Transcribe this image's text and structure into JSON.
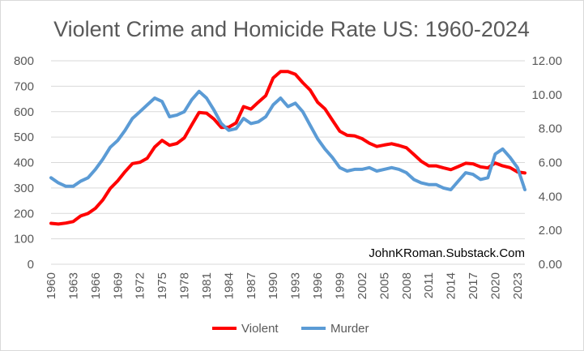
{
  "chart_data": {
    "type": "line",
    "title": "Violent Crime and Homicide Rate US: 1960-2024",
    "annotation": "JohnKRoman.Substack.Com",
    "x": [
      1960,
      1961,
      1962,
      1963,
      1964,
      1965,
      1966,
      1967,
      1968,
      1969,
      1970,
      1971,
      1972,
      1973,
      1974,
      1975,
      1976,
      1977,
      1978,
      1979,
      1980,
      1981,
      1982,
      1983,
      1984,
      1985,
      1986,
      1987,
      1988,
      1989,
      1990,
      1991,
      1992,
      1993,
      1994,
      1995,
      1996,
      1997,
      1998,
      1999,
      2000,
      2001,
      2002,
      2003,
      2004,
      2005,
      2006,
      2007,
      2008,
      2009,
      2010,
      2011,
      2012,
      2013,
      2014,
      2015,
      2016,
      2017,
      2018,
      2019,
      2020,
      2021,
      2022,
      2023,
      2024
    ],
    "x_tick_labels": [
      "1960",
      "1963",
      "1966",
      "1969",
      "1972",
      "1975",
      "1978",
      "1981",
      "1984",
      "1987",
      "1990",
      "1993",
      "1996",
      "1999",
      "2002",
      "2005",
      "2008",
      "2011",
      "2014",
      "2017",
      "2020",
      "2023"
    ],
    "y_left": {
      "range": [
        0,
        800
      ],
      "ticks": [
        "0",
        "100",
        "200",
        "300",
        "400",
        "500",
        "600",
        "700",
        "800"
      ]
    },
    "y_right": {
      "range": [
        0,
        12
      ],
      "ticks": [
        "0.00",
        "2.00",
        "4.00",
        "6.00",
        "8.00",
        "10.00",
        "12.00"
      ]
    },
    "grid": true,
    "legend_position": "bottom",
    "series": [
      {
        "name": "Violent",
        "axis": "left",
        "color": "#ff0000",
        "values": [
          161,
          158,
          162,
          168,
          190,
          200,
          220,
          253,
          298,
          328,
          364,
          396,
          401,
          417,
          461,
          487,
          468,
          475,
          497,
          548,
          597,
          594,
          571,
          538,
          539,
          556,
          620,
          610,
          637,
          663,
          732,
          758,
          758,
          747,
          714,
          685,
          637,
          611,
          567,
          523,
          507,
          505,
          494,
          476,
          463,
          469,
          474,
          467,
          458,
          432,
          405,
          387,
          387,
          379,
          372,
          384,
          397,
          395,
          383,
          379,
          398,
          387,
          380,
          363,
          359
        ]
      },
      {
        "name": "Murder",
        "axis": "right",
        "color": "#5b9bd5",
        "values": [
          5.1,
          4.8,
          4.6,
          4.6,
          4.9,
          5.1,
          5.6,
          6.2,
          6.9,
          7.3,
          7.9,
          8.6,
          9.0,
          9.4,
          9.8,
          9.6,
          8.7,
          8.8,
          9.0,
          9.7,
          10.2,
          9.8,
          9.1,
          8.3,
          7.9,
          8.0,
          8.6,
          8.3,
          8.4,
          8.7,
          9.4,
          9.8,
          9.3,
          9.5,
          9.0,
          8.2,
          7.4,
          6.8,
          6.3,
          5.7,
          5.5,
          5.6,
          5.6,
          5.7,
          5.5,
          5.6,
          5.7,
          5.6,
          5.4,
          5.0,
          4.8,
          4.7,
          4.7,
          4.5,
          4.4,
          4.9,
          5.4,
          5.3,
          5.0,
          5.1,
          6.5,
          6.8,
          6.3,
          5.7,
          4.4
        ]
      }
    ]
  }
}
